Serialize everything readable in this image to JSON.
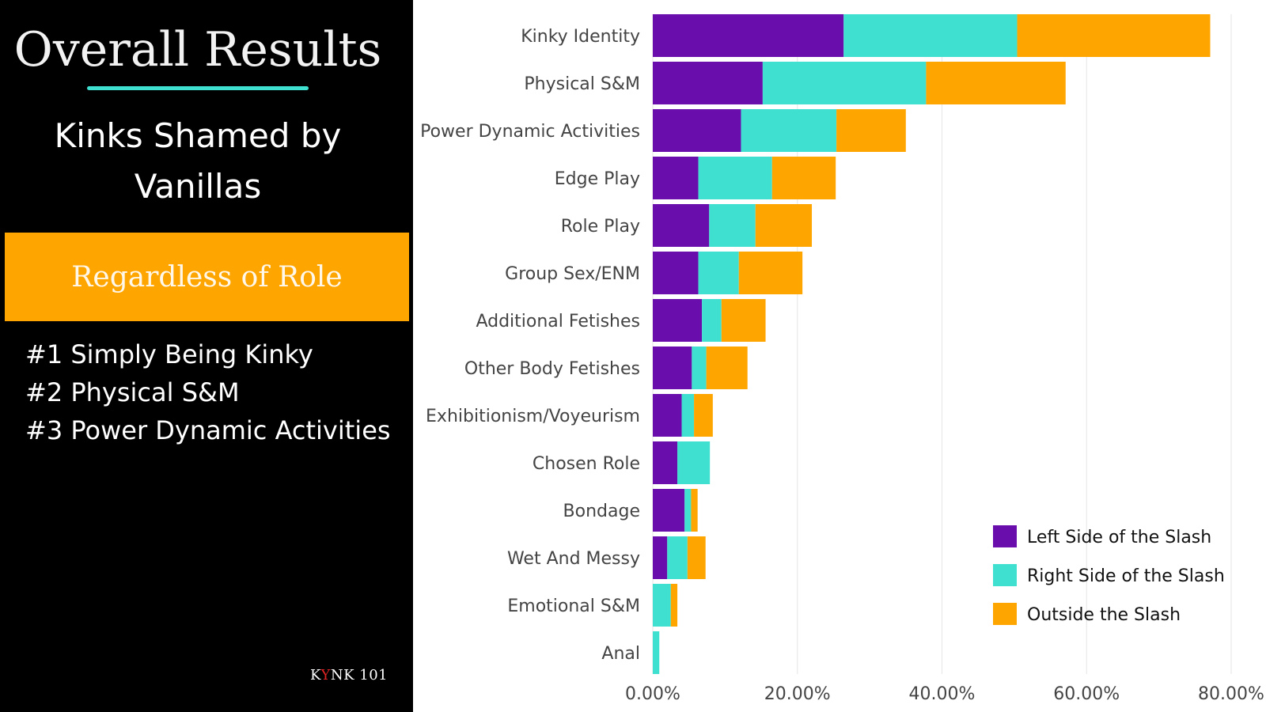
{
  "header": {
    "title": "Overall Results",
    "subtitle": "Kinks Shamed by Vanillas",
    "banner": "Regardless of Role"
  },
  "rankings": [
    "#1 Simply Being Kinky",
    "#2 Physical S&M",
    "#3 Power Dynamic Activities"
  ],
  "brand": {
    "before": "K",
    "accent": "Y",
    "after": "NK 101"
  },
  "colors": {
    "background": "#000000",
    "accent_line": "#3fe0d0",
    "banner": "#ffa500",
    "brand_accent": "#e02424",
    "grid": "#e6e6e6"
  },
  "chart_data": {
    "type": "bar",
    "orientation": "horizontal",
    "stacked": true,
    "categories": [
      "Kinky Identity",
      "Physical S&M",
      "Power Dynamic Activities",
      "Edge Play",
      "Role Play",
      "Group Sex/ENM",
      "Additional Fetishes",
      "Other Body Fetishes",
      "Exhibitionism/Voyeurism",
      "Chosen Role",
      "Bondage",
      "Wet And Messy",
      "Emotional S&M",
      "Anal"
    ],
    "series": [
      {
        "name": "Left Side of the Slash",
        "color": "#6a0dad",
        "values": [
          26.4,
          15.2,
          12.2,
          6.3,
          7.8,
          6.3,
          6.8,
          5.4,
          4.0,
          3.4,
          4.4,
          2.0,
          0.0,
          0.0
        ]
      },
      {
        "name": "Right Side of the Slash",
        "color": "#40e0d0",
        "values": [
          24.0,
          22.6,
          13.2,
          10.2,
          6.4,
          5.6,
          2.7,
          2.0,
          1.7,
          4.5,
          0.9,
          2.8,
          2.5,
          0.9
        ]
      },
      {
        "name": "Outside the Slash",
        "color": "#ffa500",
        "values": [
          26.7,
          19.3,
          9.6,
          8.8,
          7.8,
          8.8,
          6.1,
          5.7,
          2.6,
          0.0,
          0.9,
          2.5,
          0.9,
          0.0
        ]
      }
    ],
    "xlim": [
      0,
      80
    ],
    "ticks": [
      "0.00%",
      "20.00%",
      "40.00%",
      "60.00%",
      "80.00%"
    ],
    "tick_values": [
      0,
      20,
      40,
      60,
      80
    ],
    "legend_position": "bottom-right",
    "grid": true
  }
}
